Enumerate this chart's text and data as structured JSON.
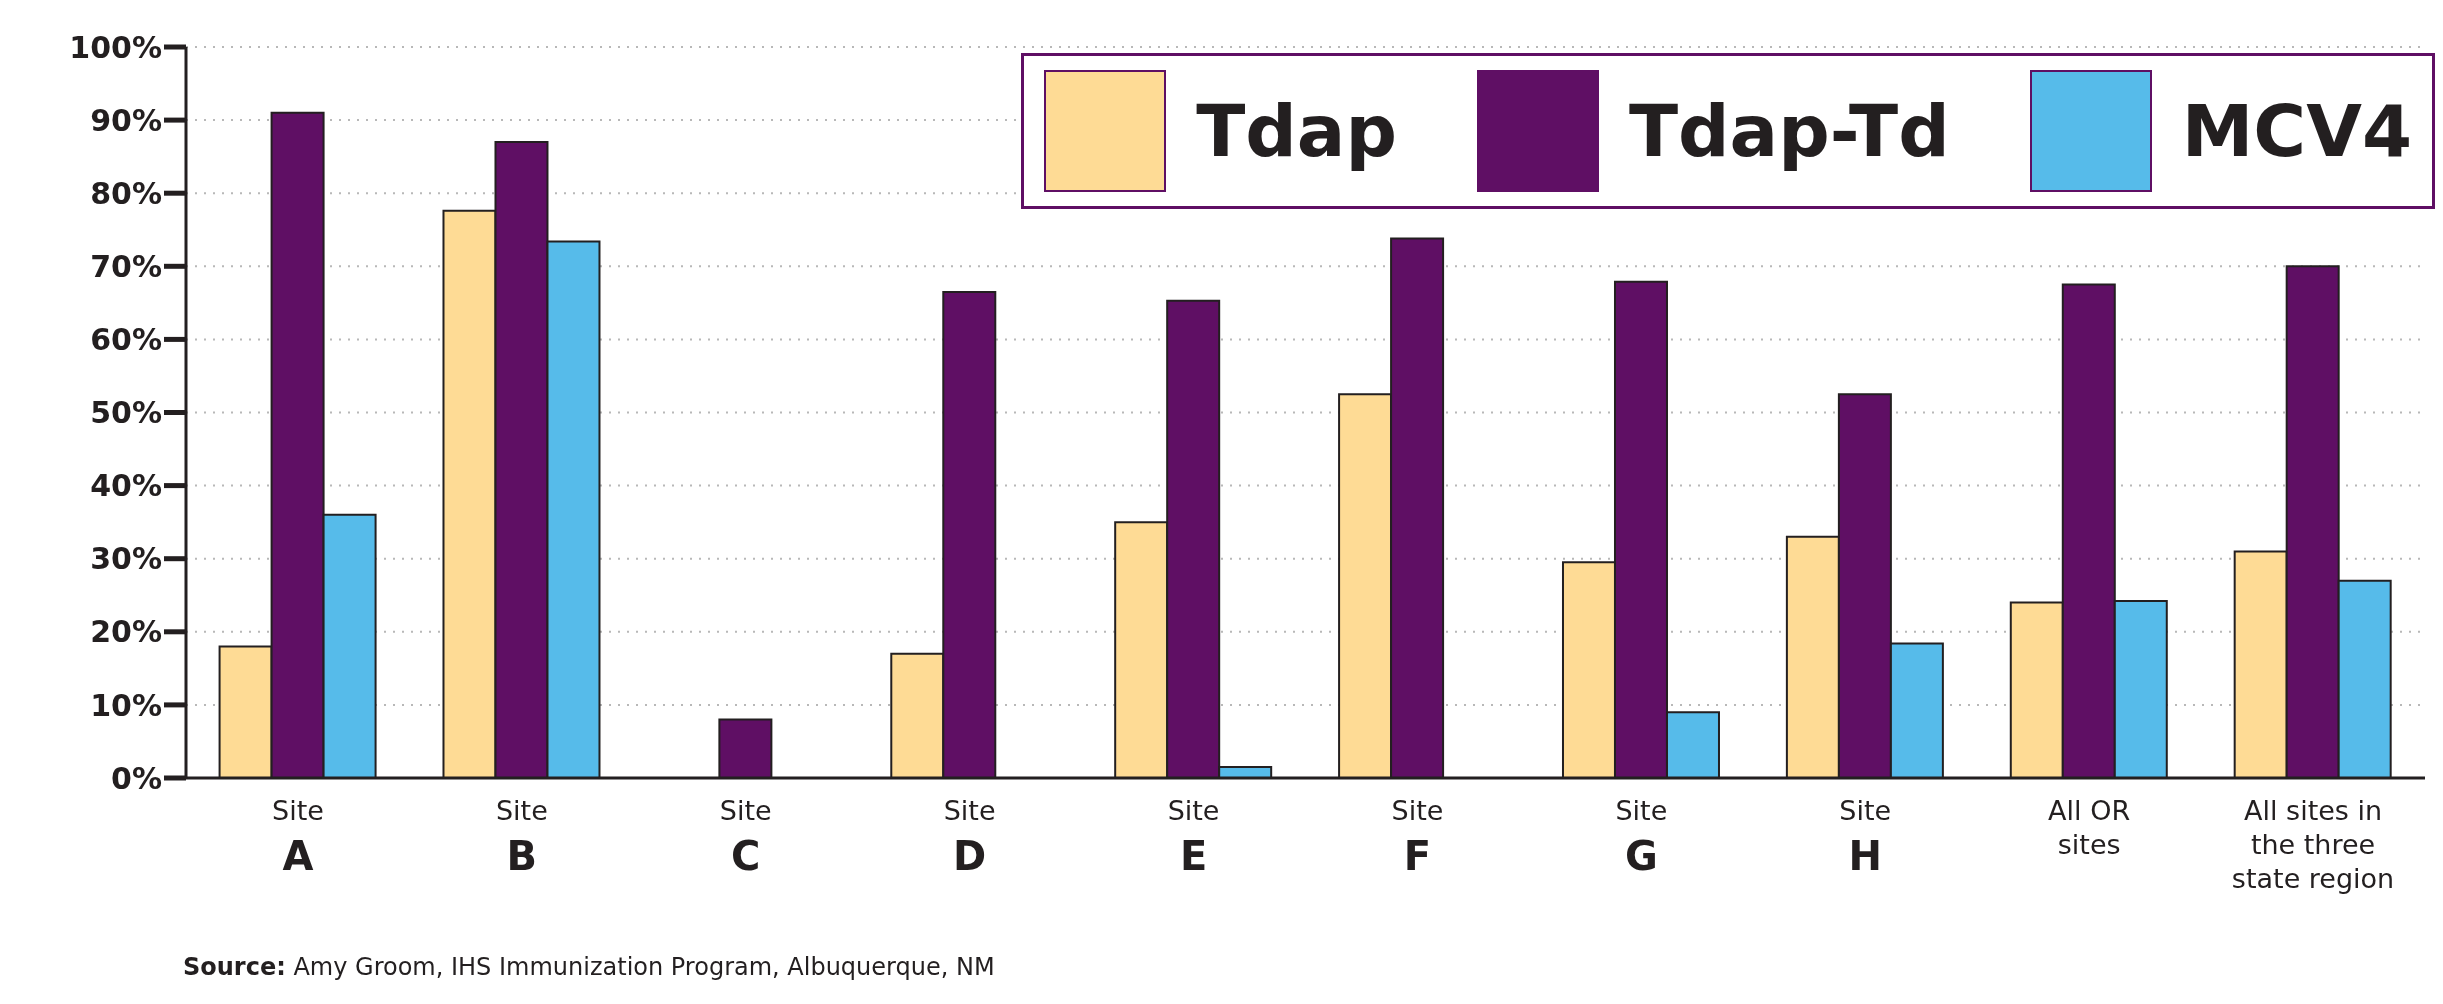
{
  "chart_data": {
    "type": "bar",
    "categories": [
      "Site\nA",
      "Site\nB",
      "Site\nC",
      "Site\nD",
      "Site\nE",
      "Site\nF",
      "Site\nG",
      "Site\nH",
      "All OR\nsites",
      "All sites in\nthe three\nstate region"
    ],
    "series": [
      {
        "name": "Tdap",
        "color": "#fedb95",
        "values": [
          18,
          77.6,
          null,
          17,
          35,
          52.5,
          29.5,
          33,
          24,
          31
        ]
      },
      {
        "name": "Tdap-Td",
        "color": "#5f0f64",
        "values": [
          91,
          87,
          8,
          66.5,
          65.3,
          73.8,
          67.9,
          52.5,
          67.5,
          70
        ]
      },
      {
        "name": "MCV4",
        "color": "#56bbea",
        "values": [
          36,
          73.4,
          null,
          null,
          1.5,
          null,
          9,
          18.4,
          24.2,
          27
        ]
      }
    ],
    "ylim": [
      0,
      100
    ],
    "yticks": [
      {
        "value": 0,
        "label": "0%"
      },
      {
        "value": 10,
        "label": "10%"
      },
      {
        "value": 20,
        "label": "20%"
      },
      {
        "value": 30,
        "label": "30%"
      },
      {
        "value": 40,
        "label": "40%"
      },
      {
        "value": 50,
        "label": "50%"
      },
      {
        "value": 60,
        "label": "60%"
      },
      {
        "value": 70,
        "label": "70%"
      },
      {
        "value": 80,
        "label": "80%"
      },
      {
        "value": 90,
        "label": "90%"
      },
      {
        "value": 100,
        "label": "100%"
      }
    ],
    "grid": "y",
    "legend": "top right",
    "annotations": [
      "Source: Amy Groom, IHS Immunization Program, Albuquerque, NM"
    ]
  }
}
